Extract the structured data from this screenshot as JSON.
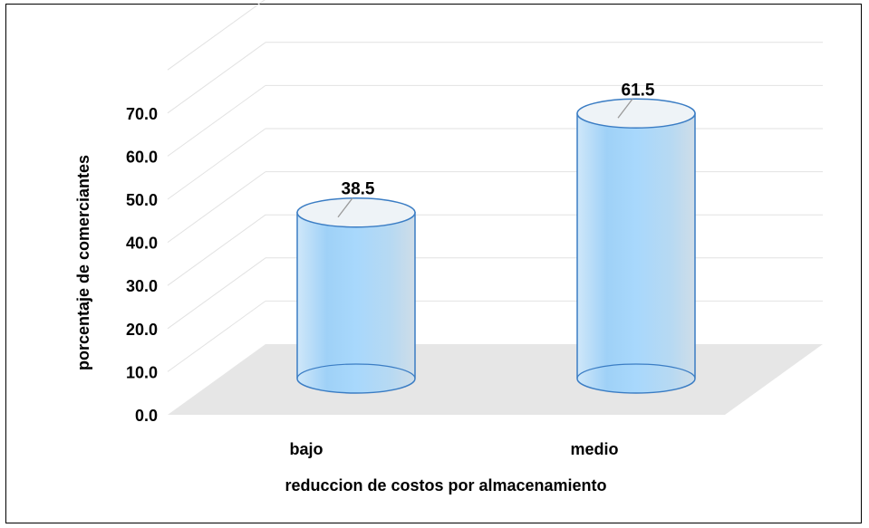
{
  "chart_data": {
    "type": "bar",
    "title": "",
    "xlabel": "reduccion de costos por almacenamiento",
    "ylabel": "porcentaje de comerciantes",
    "categories": [
      "bajo",
      "medio"
    ],
    "series": [
      {
        "values": [
          38.5,
          61.5
        ]
      }
    ],
    "data_labels": [
      "38.5",
      "61.5"
    ],
    "ylim": [
      0,
      70
    ],
    "yticks": [
      0,
      10,
      20,
      30,
      40,
      50,
      60,
      70
    ],
    "ytick_labels": [
      "0.0",
      "10.0",
      "20.0",
      "30.0",
      "40.0",
      "50.0",
      "60.0",
      "70.0"
    ],
    "grid": true,
    "style": "3d-cylinder",
    "colors": {
      "bar_fill": "#a9d6f7",
      "bar_edge": "#3b7dc4",
      "floor": "#e6e6e6",
      "grid": "#e2e2e2"
    }
  }
}
